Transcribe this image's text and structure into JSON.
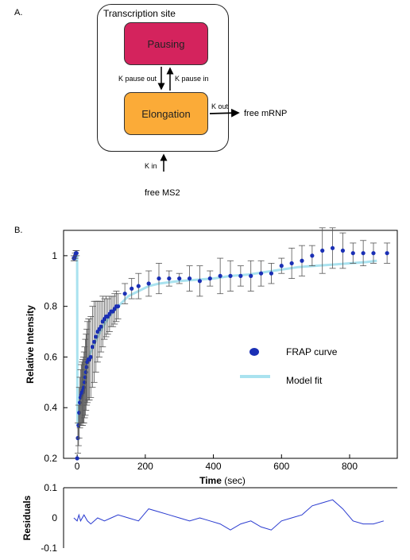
{
  "panel_a": {
    "letter": "A.",
    "site_title": "Transcription site",
    "pausing_label": "Pausing",
    "elongation_label": "Elongation",
    "k_pause_out": "K pause out",
    "k_pause_in": "K pause in",
    "k_out": "K out",
    "free_mrnp": "free mRNP",
    "k_in": "K in",
    "free_ms2": "free MS2",
    "colors": {
      "pausing": "#d4235d",
      "elongation": "#fbab38"
    }
  },
  "panel_b": {
    "letter": "B."
  },
  "chart_data": [
    {
      "type": "scatter",
      "xlabel": "Time",
      "xlabel_unit": "(sec)",
      "ylabel": "Relative Intensity",
      "xlim": [
        -40,
        940
      ],
      "ylim": [
        0.2,
        1.1
      ],
      "xticks": [
        0,
        200,
        400,
        600,
        800
      ],
      "yticks": [
        0.2,
        0.4,
        0.6,
        0.8,
        1
      ],
      "legend": {
        "placement": "right-center",
        "entries": [
          "FRAP curve",
          "Model fit"
        ]
      },
      "series": [
        {
          "name": "FRAP curve",
          "color": "#1a2fb5",
          "x": [
            -10,
            -8,
            -6,
            -4,
            -2,
            0,
            2,
            4,
            6,
            8,
            10,
            12,
            14,
            16,
            18,
            20,
            22,
            24,
            26,
            28,
            30,
            33,
            36,
            40,
            45,
            50,
            55,
            60,
            65,
            70,
            75,
            80,
            85,
            90,
            95,
            100,
            105,
            110,
            115,
            120,
            140,
            160,
            180,
            210,
            240,
            270,
            300,
            330,
            360,
            390,
            420,
            450,
            480,
            510,
            540,
            570,
            600,
            630,
            660,
            690,
            720,
            750,
            780,
            810,
            840,
            870,
            910
          ],
          "y": [
            0.99,
            0.99,
            1.0,
            1.01,
            1.01,
            0.2,
            0.28,
            0.33,
            0.38,
            0.42,
            0.44,
            0.45,
            0.46,
            0.46,
            0.47,
            0.48,
            0.5,
            0.52,
            0.54,
            0.56,
            0.58,
            0.59,
            0.59,
            0.6,
            0.64,
            0.66,
            0.68,
            0.7,
            0.71,
            0.72,
            0.74,
            0.75,
            0.76,
            0.76,
            0.77,
            0.78,
            0.78,
            0.79,
            0.8,
            0.8,
            0.85,
            0.87,
            0.88,
            0.89,
            0.91,
            0.91,
            0.91,
            0.91,
            0.9,
            0.91,
            0.92,
            0.92,
            0.92,
            0.92,
            0.93,
            0.93,
            0.96,
            0.97,
            0.98,
            1.0,
            1.02,
            1.03,
            1.02,
            1.01,
            1.01,
            1.01,
            1.01
          ],
          "err": [
            0.01,
            0.01,
            0.01,
            0.01,
            0.01,
            0,
            0.06,
            0.08,
            0.1,
            0.1,
            0.11,
            0.12,
            0.12,
            0.13,
            0.13,
            0.14,
            0.14,
            0.15,
            0.15,
            0.15,
            0.16,
            0.16,
            0.16,
            0.16,
            0.16,
            0.16,
            0.14,
            0.12,
            0.11,
            0.1,
            0.1,
            0.08,
            0.08,
            0.07,
            0.07,
            0.06,
            0.06,
            0.06,
            0.06,
            0.05,
            0.04,
            0.04,
            0.05,
            0.05,
            0.06,
            0.03,
            0.02,
            0.05,
            0.06,
            0.03,
            0.07,
            0.06,
            0.04,
            0.06,
            0.05,
            0.04,
            0.03,
            0.06,
            0.06,
            0.04,
            0.09,
            0.08,
            0.07,
            0.04,
            0.05,
            0.04,
            0.04
          ]
        },
        {
          "name": "Model fit",
          "color": "#a9e2ef",
          "x": [
            -10,
            0,
            0.5,
            1,
            3,
            5,
            8,
            12,
            20,
            30,
            40,
            60,
            80,
            100,
            120,
            150,
            180,
            210,
            240,
            270,
            300,
            350,
            400,
            450,
            500,
            550,
            600,
            650,
            700,
            750,
            800,
            850,
            880
          ],
          "y": [
            1.0,
            1.0,
            0.4,
            0.33,
            0.36,
            0.39,
            0.43,
            0.47,
            0.53,
            0.58,
            0.62,
            0.68,
            0.73,
            0.77,
            0.8,
            0.84,
            0.86,
            0.88,
            0.89,
            0.895,
            0.9,
            0.905,
            0.91,
            0.92,
            0.925,
            0.935,
            0.945,
            0.955,
            0.96,
            0.965,
            0.97,
            0.975,
            0.98
          ]
        }
      ]
    },
    {
      "type": "line",
      "ylabel": "Residuals",
      "xlim": [
        -40,
        940
      ],
      "ylim": [
        -0.1,
        0.1
      ],
      "yticks": [
        -0.1,
        0,
        0.1
      ],
      "series": [
        {
          "color": "#2a3bd0",
          "x": [
            -10,
            0,
            5,
            10,
            20,
            30,
            40,
            60,
            80,
            100,
            120,
            150,
            180,
            210,
            240,
            270,
            300,
            330,
            360,
            390,
            420,
            450,
            480,
            510,
            540,
            570,
            600,
            630,
            660,
            690,
            720,
            750,
            780,
            810,
            840,
            870,
            900
          ],
          "y": [
            0.0,
            -0.01,
            0.01,
            -0.01,
            0.01,
            -0.01,
            -0.02,
            0.0,
            -0.01,
            0.0,
            0.01,
            0.0,
            -0.01,
            0.03,
            0.02,
            0.01,
            0.0,
            -0.01,
            0.0,
            -0.01,
            -0.02,
            -0.04,
            -0.02,
            -0.01,
            -0.03,
            -0.04,
            -0.01,
            0.0,
            0.01,
            0.04,
            0.05,
            0.06,
            0.03,
            -0.01,
            -0.02,
            -0.02,
            -0.01
          ]
        }
      ]
    }
  ]
}
